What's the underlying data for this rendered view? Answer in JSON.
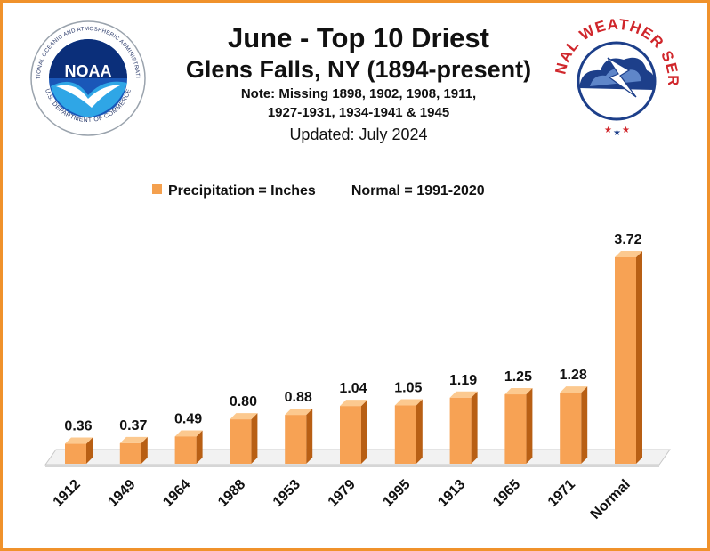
{
  "header": {
    "title": "June - Top 10 Driest",
    "subtitle": "Glens Falls, NY (1894-present)",
    "note_line1": "Note: Missing 1898, 1902, 1908, 1911,",
    "note_line2": "1927-1931, 1934-1941 & 1945",
    "updated": "Updated: July 2024"
  },
  "legend": {
    "series_label": "Precipitation = Inches",
    "normal_label": "Normal = 1991-2020"
  },
  "logos": {
    "noaa_text": "NOAA",
    "noaa_ring": "NATIONAL OCEANIC AND ATMOSPHERIC ADMINISTRATION",
    "noaa_ring_bottom": "U.S. DEPARTMENT OF COMMERCE",
    "nws_ring": "NATIONAL WEATHER SERVICE"
  },
  "colors": {
    "bar_front": "#f7a254",
    "bar_side": "#b85f14",
    "bar_top": "#fcc98f",
    "frame": "#f0922b"
  },
  "chart_data": {
    "type": "bar",
    "categories": [
      "1912",
      "1949",
      "1964",
      "1988",
      "1953",
      "1979",
      "1995",
      "1913",
      "1965",
      "1971",
      "Normal"
    ],
    "values": [
      0.36,
      0.37,
      0.49,
      0.8,
      0.88,
      1.04,
      1.05,
      1.19,
      1.25,
      1.28,
      3.72
    ],
    "labels": [
      "0.36",
      "0.37",
      "0.49",
      "0.80",
      "0.88",
      "1.04",
      "1.05",
      "1.19",
      "1.25",
      "1.28",
      "3.72"
    ],
    "ylim": [
      0,
      3.72
    ],
    "grid": false,
    "legend_position": "top"
  }
}
